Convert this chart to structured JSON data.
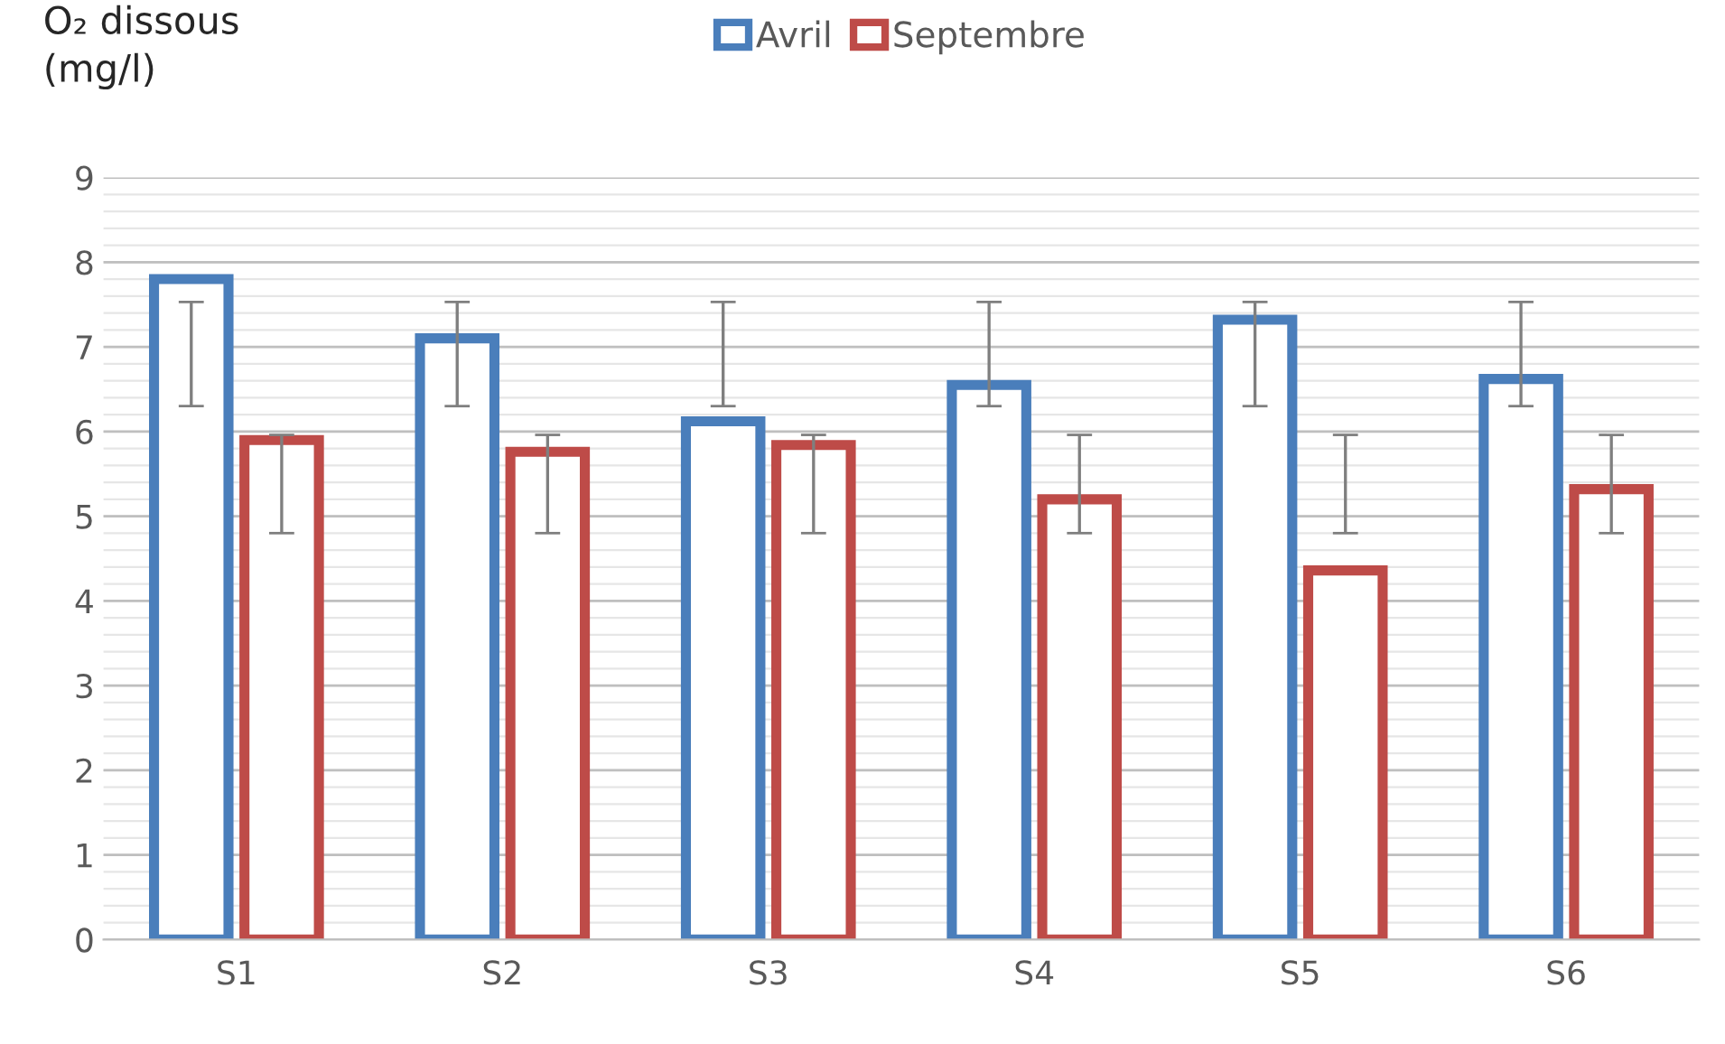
{
  "chart_data": {
    "type": "bar",
    "ylabel": "O₂ dissous\n(mg/l)",
    "categories": [
      "S1",
      "S2",
      "S3",
      "S4",
      "S5",
      "S6"
    ],
    "series": [
      {
        "name": "Avril",
        "color": "#4a7ebb",
        "values": [
          7.8,
          7.1,
          6.12,
          6.55,
          7.32,
          6.62
        ],
        "errors": [
          [
            6.3,
            7.53
          ],
          [
            6.3,
            7.53
          ],
          [
            6.3,
            7.53
          ],
          [
            6.3,
            7.53
          ],
          [
            6.3,
            7.53
          ],
          [
            6.3,
            7.53
          ]
        ]
      },
      {
        "name": "Septembre",
        "color": "#be4b48",
        "values": [
          5.9,
          5.76,
          5.84,
          5.2,
          4.36,
          5.32
        ],
        "errors": [
          [
            4.8,
            5.96
          ],
          [
            4.8,
            5.96
          ],
          [
            4.8,
            5.96
          ],
          [
            4.8,
            5.96
          ],
          [
            4.8,
            5.96
          ],
          [
            4.8,
            5.96
          ]
        ]
      }
    ],
    "ylim": [
      0,
      9
    ],
    "yticks": [
      0,
      1,
      2,
      3,
      4,
      5,
      6,
      7,
      8,
      9
    ],
    "grid": "y",
    "legend": "top"
  }
}
